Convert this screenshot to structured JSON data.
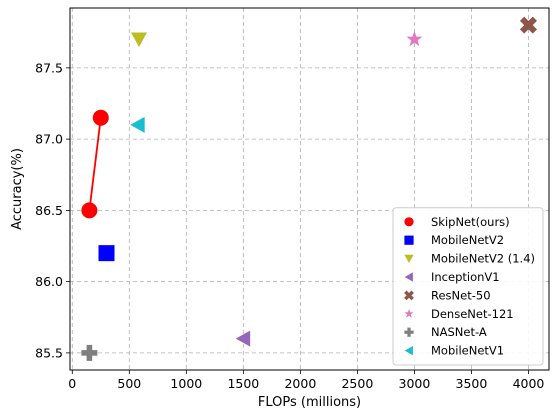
{
  "chart_data": {
    "type": "scatter",
    "xlabel": "FLOPs (millions)",
    "ylabel": "Accuracy(%)",
    "xlim": [
      -20,
      4180
    ],
    "ylim": [
      85.38,
      87.92
    ],
    "xticks": [
      0,
      500,
      1000,
      1500,
      2000,
      2500,
      3000,
      3500,
      4000
    ],
    "yticks": [
      85.5,
      86.0,
      86.5,
      87.0,
      87.5
    ],
    "xtick_labels": [
      "0",
      "500",
      "1000",
      "1500",
      "2000",
      "2500",
      "3000",
      "3500",
      "4000"
    ],
    "ytick_labels": [
      "85.5",
      "86.0",
      "86.5",
      "87.0",
      "87.5"
    ],
    "grid": true,
    "grid_style": "dashed",
    "legend_position": "lower-right",
    "series": [
      {
        "name": "SkipNet(ours)",
        "marker": "circle",
        "color": "#ff0000",
        "connected": true,
        "points": [
          {
            "x": 150,
            "y": 86.5
          },
          {
            "x": 250,
            "y": 87.15
          }
        ]
      },
      {
        "name": "MobileNetV2",
        "marker": "square",
        "color": "#0000ff",
        "points": [
          {
            "x": 300,
            "y": 86.2
          }
        ]
      },
      {
        "name": "MobileNetV2 (1.4)",
        "marker": "triangle-down",
        "color": "#bcbd22",
        "points": [
          {
            "x": 585,
            "y": 87.7
          }
        ]
      },
      {
        "name": "InceptionV1",
        "marker": "triangle-left",
        "color": "#9467bd",
        "points": [
          {
            "x": 1500,
            "y": 85.6
          }
        ]
      },
      {
        "name": "ResNet-50",
        "marker": "x-filled",
        "color": "#8c564b",
        "points": [
          {
            "x": 4000,
            "y": 87.8
          }
        ]
      },
      {
        "name": "DenseNet-121",
        "marker": "star",
        "color": "#e377c2",
        "points": [
          {
            "x": 3000,
            "y": 87.7
          }
        ]
      },
      {
        "name": "NASNet-A",
        "marker": "plus-filled",
        "color": "#7f7f7f",
        "points": [
          {
            "x": 150,
            "y": 85.5
          }
        ]
      },
      {
        "name": "MobileNetV1",
        "marker": "triangle-left",
        "color": "#17becf",
        "points": [
          {
            "x": 575,
            "y": 87.1
          }
        ]
      }
    ]
  }
}
